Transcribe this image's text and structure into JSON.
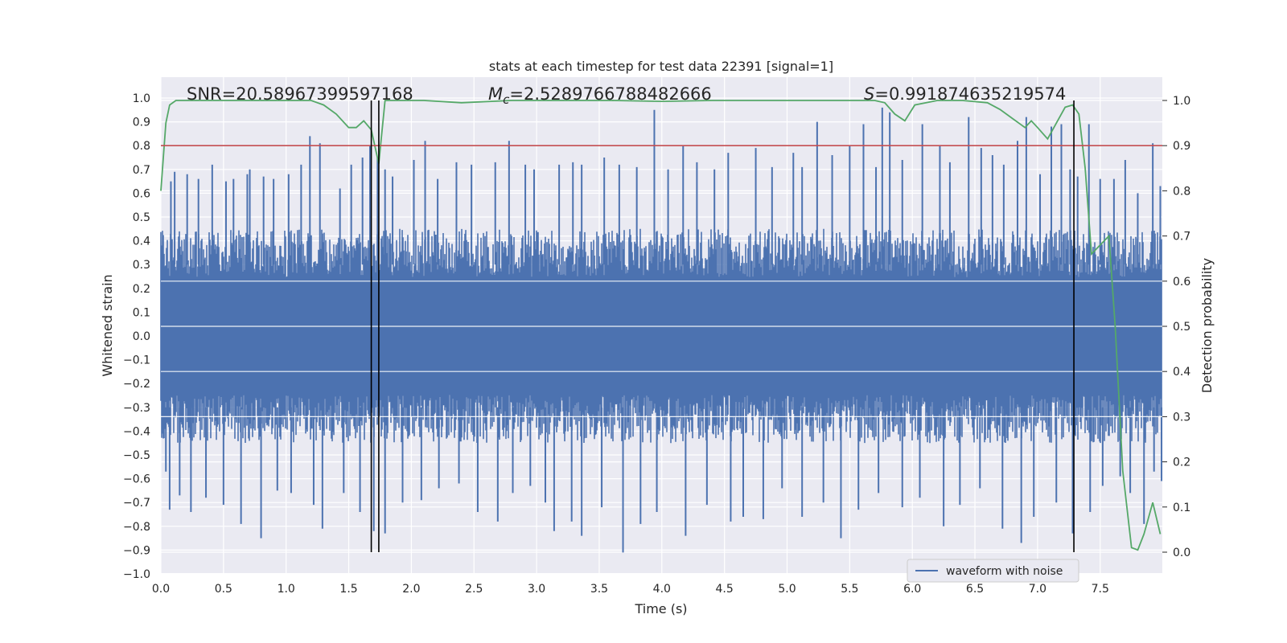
{
  "chart_data": {
    "type": "line",
    "title": "stats at each timestep for test data 22391 [signal=1]",
    "xlabel": "Time (s)",
    "ylabel": "Whitened strain",
    "y2label": "Detection probability",
    "xlim": [
      0.0,
      8.0
    ],
    "ylim": [
      -1.0,
      1.0
    ],
    "y2lim": [
      0.0,
      1.0
    ],
    "grid": true,
    "legend_placement": "bottom-right",
    "x_ticks": [
      "0.0",
      "0.5",
      "1.0",
      "1.5",
      "2.0",
      "2.5",
      "3.0",
      "3.5",
      "4.0",
      "4.5",
      "5.0",
      "5.5",
      "6.0",
      "6.5",
      "7.0",
      "7.5"
    ],
    "y_ticks": [
      "1.0",
      "0.9",
      "0.8",
      "0.7",
      "0.6",
      "0.5",
      "0.4",
      "0.3",
      "0.2",
      "0.1",
      "0.0",
      "−0.1",
      "−0.2",
      "−0.3",
      "−0.4",
      "−0.5",
      "−0.6",
      "−0.7",
      "−0.8",
      "−0.9",
      "−1.0"
    ],
    "y2_ticks": [
      "1.0",
      "0.9",
      "0.8",
      "0.7",
      "0.6",
      "0.5",
      "0.4",
      "0.3",
      "0.2",
      "0.1",
      "0.0"
    ],
    "annotations": {
      "snr": "SNR=20.58967399597168",
      "mc_symbol": "M",
      "mc_sub": "c",
      "mc_value": "=2.5289766788482666",
      "s_symbol": "S",
      "s_value": "=0.991874635219574"
    },
    "threshold": {
      "value": 0.9,
      "color": "#c44e52"
    },
    "vertical_markers": [
      1.68,
      1.74,
      7.29
    ],
    "series": [
      {
        "name": "waveform with noise",
        "color": "#4c72b0",
        "envelope_upper_typical": 0.45,
        "envelope_lower_typical": -0.45,
        "peak_spikes": [
          [
            0.08,
            0.65
          ],
          [
            0.11,
            0.69
          ],
          [
            0.21,
            0.68
          ],
          [
            0.3,
            0.66
          ],
          [
            0.41,
            0.72
          ],
          [
            0.52,
            0.65
          ],
          [
            0.58,
            0.66
          ],
          [
            0.69,
            0.68
          ],
          [
            0.71,
            0.7
          ],
          [
            0.82,
            0.67
          ],
          [
            0.9,
            0.66
          ],
          [
            1.02,
            0.68
          ],
          [
            1.12,
            0.72
          ],
          [
            1.19,
            0.84
          ],
          [
            1.27,
            0.81
          ],
          [
            1.43,
            0.62
          ],
          [
            1.52,
            0.72
          ],
          [
            1.61,
            0.75
          ],
          [
            1.67,
            0.8
          ],
          [
            1.73,
            0.75
          ],
          [
            1.79,
            0.7
          ],
          [
            1.85,
            0.67
          ],
          [
            2.02,
            0.74
          ],
          [
            2.11,
            0.82
          ],
          [
            2.21,
            0.66
          ],
          [
            2.36,
            0.73
          ],
          [
            2.48,
            0.72
          ],
          [
            2.67,
            0.73
          ],
          [
            2.78,
            0.82
          ],
          [
            2.91,
            0.72
          ],
          [
            2.98,
            0.7
          ],
          [
            3.18,
            0.72
          ],
          [
            3.29,
            0.73
          ],
          [
            3.36,
            0.72
          ],
          [
            3.54,
            0.75
          ],
          [
            3.66,
            0.72
          ],
          [
            3.8,
            0.71
          ],
          [
            3.94,
            0.95
          ],
          [
            4.05,
            0.7
          ],
          [
            4.17,
            0.8
          ],
          [
            4.28,
            0.73
          ],
          [
            4.42,
            0.7
          ],
          [
            4.53,
            0.77
          ],
          [
            4.75,
            0.79
          ],
          [
            4.88,
            0.71
          ],
          [
            5.05,
            0.77
          ],
          [
            5.12,
            0.71
          ],
          [
            5.24,
            0.9
          ],
          [
            5.36,
            0.76
          ],
          [
            5.5,
            0.8
          ],
          [
            5.61,
            0.89
          ],
          [
            5.71,
            0.71
          ],
          [
            5.76,
            0.96
          ],
          [
            5.82,
            0.94
          ],
          [
            5.92,
            0.74
          ],
          [
            6.08,
            0.89
          ],
          [
            6.22,
            0.8
          ],
          [
            6.3,
            0.73
          ],
          [
            6.45,
            0.92
          ],
          [
            6.55,
            0.79
          ],
          [
            6.64,
            0.76
          ],
          [
            6.73,
            0.72
          ],
          [
            6.84,
            0.82
          ],
          [
            6.91,
            0.92
          ],
          [
            7.02,
            0.68
          ],
          [
            7.11,
            0.88
          ],
          [
            7.19,
            0.89
          ],
          [
            7.26,
            0.7
          ],
          [
            7.32,
            0.67
          ],
          [
            7.41,
            0.89
          ],
          [
            7.5,
            0.66
          ],
          [
            7.61,
            0.66
          ],
          [
            7.7,
            0.74
          ],
          [
            7.8,
            0.6
          ],
          [
            7.92,
            0.81
          ],
          [
            7.98,
            0.63
          ]
        ],
        "trough_spikes": [
          [
            0.04,
            -0.57
          ],
          [
            0.07,
            -0.73
          ],
          [
            0.15,
            -0.67
          ],
          [
            0.24,
            -0.74
          ],
          [
            0.36,
            -0.68
          ],
          [
            0.5,
            -0.71
          ],
          [
            0.64,
            -0.79
          ],
          [
            0.8,
            -0.85
          ],
          [
            0.93,
            -0.65
          ],
          [
            1.04,
            -0.66
          ],
          [
            1.22,
            -0.71
          ],
          [
            1.29,
            -0.81
          ],
          [
            1.46,
            -0.66
          ],
          [
            1.59,
            -0.74
          ],
          [
            1.7,
            -0.82
          ],
          [
            1.79,
            -0.83
          ],
          [
            1.93,
            -0.7
          ],
          [
            2.08,
            -0.69
          ],
          [
            2.22,
            -0.64
          ],
          [
            2.38,
            -0.62
          ],
          [
            2.53,
            -0.74
          ],
          [
            2.69,
            -0.78
          ],
          [
            2.81,
            -0.66
          ],
          [
            2.95,
            -0.63
          ],
          [
            3.07,
            -0.7
          ],
          [
            3.14,
            -0.82
          ],
          [
            3.28,
            -0.78
          ],
          [
            3.36,
            -0.84
          ],
          [
            3.52,
            -0.72
          ],
          [
            3.69,
            -0.91
          ],
          [
            3.83,
            -0.79
          ],
          [
            3.96,
            -0.74
          ],
          [
            4.19,
            -0.84
          ],
          [
            4.36,
            -0.71
          ],
          [
            4.55,
            -0.78
          ],
          [
            4.65,
            -0.76
          ],
          [
            4.81,
            -0.77
          ],
          [
            4.96,
            -0.64
          ],
          [
            5.12,
            -0.76
          ],
          [
            5.29,
            -0.7
          ],
          [
            5.43,
            -0.85
          ],
          [
            5.57,
            -0.73
          ],
          [
            5.73,
            -0.66
          ],
          [
            5.92,
            -0.72
          ],
          [
            6.06,
            -0.68
          ],
          [
            6.25,
            -0.8
          ],
          [
            6.38,
            -0.71
          ],
          [
            6.54,
            -0.64
          ],
          [
            6.72,
            -0.81
          ],
          [
            6.87,
            -0.87
          ],
          [
            6.97,
            -0.76
          ],
          [
            7.15,
            -0.7
          ],
          [
            7.28,
            -0.83
          ],
          [
            7.42,
            -0.74
          ],
          [
            7.52,
            -0.63
          ],
          [
            7.66,
            -0.59
          ],
          [
            7.74,
            -0.66
          ],
          [
            7.85,
            -0.79
          ],
          [
            7.93,
            -0.57
          ],
          [
            7.99,
            -0.61
          ]
        ]
      },
      {
        "name": "",
        "axis": "right",
        "color": "#55a868",
        "x": [
          0.0,
          0.04,
          0.07,
          0.12,
          0.3,
          0.6,
          1.0,
          1.2,
          1.3,
          1.4,
          1.5,
          1.56,
          1.62,
          1.68,
          1.74,
          1.79,
          1.9,
          2.1,
          2.4,
          2.8,
          3.2,
          3.6,
          4.0,
          4.4,
          4.8,
          5.2,
          5.5,
          5.7,
          5.78,
          5.86,
          5.94,
          6.02,
          6.2,
          6.4,
          6.6,
          6.7,
          6.8,
          6.9,
          6.95,
          7.0,
          7.08,
          7.15,
          7.22,
          7.28,
          7.33,
          7.38,
          7.43,
          7.5,
          7.57,
          7.62,
          7.68,
          7.75,
          7.8,
          7.85,
          7.92,
          7.98
        ],
        "y": [
          0.8,
          0.95,
          0.99,
          1.0,
          1.0,
          1.0,
          1.0,
          1.0,
          0.99,
          0.97,
          0.94,
          0.94,
          0.955,
          0.935,
          0.86,
          1.0,
          1.0,
          1.0,
          0.995,
          1.0,
          1.0,
          1.0,
          0.998,
          1.0,
          1.0,
          1.0,
          1.0,
          1.0,
          0.995,
          0.97,
          0.955,
          0.99,
          1.0,
          1.0,
          0.995,
          0.98,
          0.96,
          0.94,
          0.955,
          0.94,
          0.915,
          0.95,
          0.985,
          0.99,
          0.97,
          0.85,
          0.66,
          0.68,
          0.7,
          0.5,
          0.18,
          0.01,
          0.005,
          0.04,
          0.11,
          0.04
        ]
      }
    ]
  },
  "legend": {
    "label": "waveform with noise"
  }
}
